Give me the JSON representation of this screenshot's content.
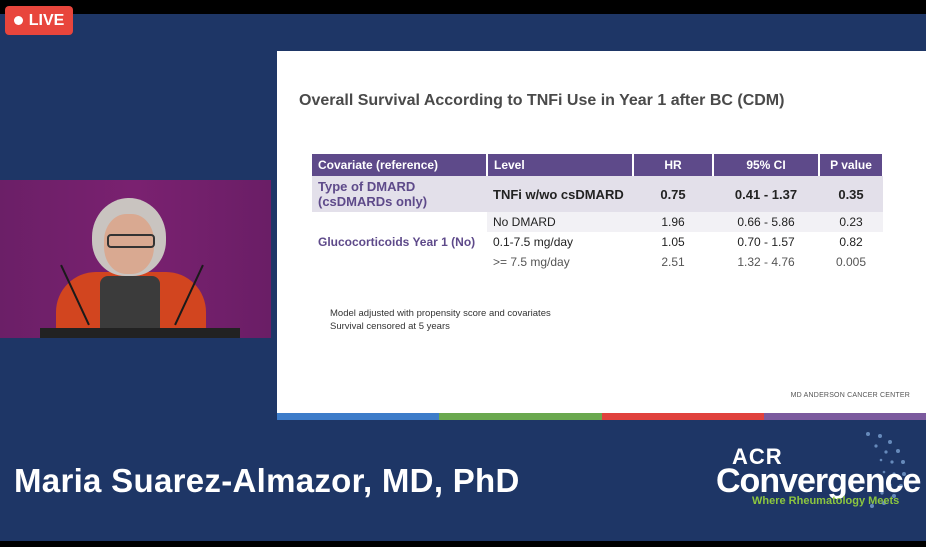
{
  "live_badge": {
    "label": "LIVE"
  },
  "slide": {
    "title": "Overall Survival According to TNFi Use in Year 1 after BC (CDM)",
    "table": {
      "headers": {
        "covariate": "Covariate (reference)",
        "level": "Level",
        "hr": "HR",
        "ci": "95% CI",
        "p": "P value"
      },
      "rows": [
        {
          "covariate": "Type of DMARD (csDMARDs only)",
          "level": "TNFi w/wo csDMARD",
          "hr": "0.75",
          "ci": "0.41 - 1.37",
          "p": "0.35"
        },
        {
          "covariate": "",
          "level": "No DMARD",
          "hr": "1.96",
          "ci": "0.66 - 5.86",
          "p": "0.23"
        },
        {
          "covariate": "Glucocorticoids Year 1 (No)",
          "level": "0.1-7.5 mg/day",
          "hr": "1.05",
          "ci": "0.70 - 1.57",
          "p": "0.82"
        },
        {
          "covariate": "",
          "level": ">= 7.5 mg/day",
          "hr": "2.51",
          "ci": "1.32 - 4.76",
          "p": "0.005"
        }
      ]
    },
    "notes": [
      "Model adjusted with propensity score and covariates",
      "Survival censored at 5 years"
    ],
    "brand": "MD ANDERSON CANCER CENTER",
    "stripe_colors": [
      "#3d7cc9",
      "#6aa84f",
      "#e0413d",
      "#7b5a9e"
    ]
  },
  "speaker": {
    "name": "Maria Suarez-Almazor, MD, PhD"
  },
  "logo": {
    "top": "ACR",
    "main": "Convergence",
    "sub": "Where Rheumatology Meets"
  },
  "colors": {
    "background": "#1e3666",
    "live": "#e8453c",
    "table_header": "#5e4a8a",
    "accent_green": "#8cc63f"
  }
}
